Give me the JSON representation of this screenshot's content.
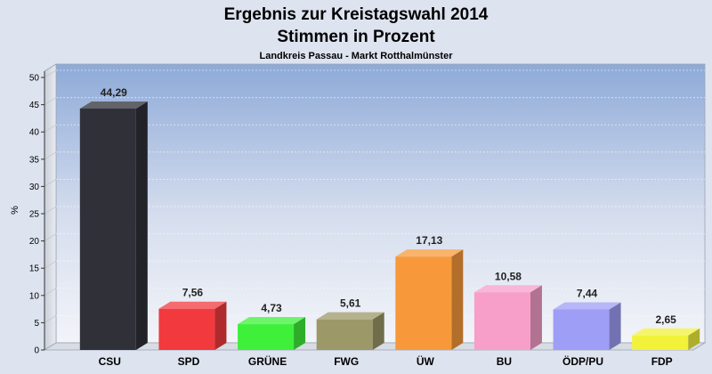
{
  "chart_data": {
    "type": "bar",
    "title": "Ergebnis zur Kreistagswahl 2014",
    "title_line2": "Stimmen in Prozent",
    "subtitle": "Landkreis Passau - Markt Rotthalmünster",
    "ylabel": "%",
    "ylim": [
      0,
      50
    ],
    "yticks": [
      0,
      5,
      10,
      15,
      20,
      25,
      30,
      35,
      40,
      45,
      50
    ],
    "grid": true,
    "categories": [
      "CSU",
      "SPD",
      "GRÜNE",
      "FWG",
      "ÜW",
      "BU",
      "ÖDP/PU",
      "FDP"
    ],
    "values": [
      44.29,
      7.56,
      4.73,
      5.61,
      17.13,
      10.58,
      7.44,
      2.65
    ],
    "value_labels": [
      "44,29",
      "7,56",
      "4,73",
      "5,61",
      "17,13",
      "10,58",
      "7,44",
      "2,65"
    ],
    "colors": [
      "#2f3038",
      "#f23a3e",
      "#3ef03a",
      "#9c9868",
      "#f7993a",
      "#f79ec9",
      "#9e9ef7",
      "#f2f23a"
    ]
  }
}
